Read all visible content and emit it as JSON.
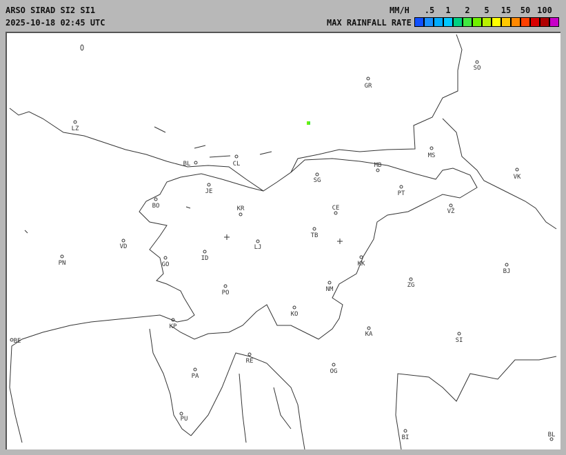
{
  "header": {
    "title": "ARSO SIRAD SI2 SI1",
    "timestamp": "2025-10-18 02:45 UTC"
  },
  "legend": {
    "unit": "MM/H",
    "label": "MAX RAINFALL RATE",
    "ticks": [
      ".5",
      "1",
      "2",
      "5",
      "15",
      "50",
      "100"
    ],
    "colors": [
      "#1050ff",
      "#1890ff",
      "#00acff",
      "#00c8ff",
      "#00d080",
      "#40e840",
      "#70f000",
      "#b8f000",
      "#ffff00",
      "#ffc800",
      "#ff8800",
      "#ff4000",
      "#d80000",
      "#b00000",
      "#c800c8"
    ]
  },
  "map": {
    "cities": [
      {
        "name": "SO"
      },
      {
        "name": "GR"
      },
      {
        "name": "LZ"
      },
      {
        "name": "MS"
      },
      {
        "name": "BL"
      },
      {
        "name": "CL"
      },
      {
        "name": "MB"
      },
      {
        "name": "VK"
      },
      {
        "name": "SG"
      },
      {
        "name": "JE"
      },
      {
        "name": "PT"
      },
      {
        "name": "BO"
      },
      {
        "name": "KR"
      },
      {
        "name": "CE"
      },
      {
        "name": "VŽ"
      },
      {
        "name": "TB"
      },
      {
        "name": "LJ"
      },
      {
        "name": "VD"
      },
      {
        "name": "PN"
      },
      {
        "name": "ID"
      },
      {
        "name": "GO"
      },
      {
        "name": "KK"
      },
      {
        "name": "BJ"
      },
      {
        "name": "ZG"
      },
      {
        "name": "NM"
      },
      {
        "name": "PO"
      },
      {
        "name": "KO"
      },
      {
        "name": "KP"
      },
      {
        "name": "KA"
      },
      {
        "name": "SI"
      },
      {
        "name": "BE"
      },
      {
        "name": "RE"
      },
      {
        "name": "OG"
      },
      {
        "name": "PA"
      },
      {
        "name": "PU"
      },
      {
        "name": "BI"
      },
      {
        "name": "BL"
      }
    ],
    "radar_sites": [
      "radar-site-lisca",
      "radar-site-pasja-ravan"
    ],
    "rain_echo_color": "#70f000"
  }
}
